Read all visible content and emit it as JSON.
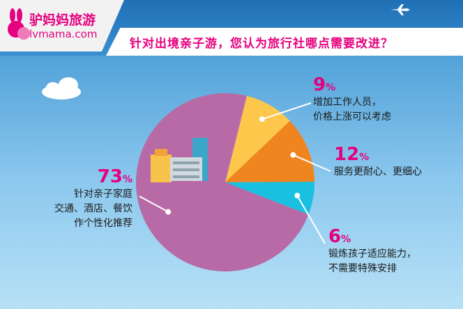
{
  "brand": {
    "name_cn": "驴妈妈旅游",
    "name_en": "lvmama.com"
  },
  "title": "针对出境亲子游，您认为旅行社哪点需要改进？",
  "colors": {
    "brand": "#e5007f"
  },
  "chart_data": {
    "type": "pie",
    "title": "针对出境亲子游，您认为旅行社哪点需要改进？",
    "slices": [
      {
        "label": "增加工作人员，\n价格上涨可以考虑",
        "value": 9,
        "color": "#fcc74a"
      },
      {
        "label": "服务更耐心、更细心",
        "value": 12,
        "color": "#f0841e"
      },
      {
        "label": "锻炼孩子适应能力，\n不需要特殊安排",
        "value": 6,
        "color": "#19c0e0"
      },
      {
        "label": "针对亲子家庭\n交通、酒店、餐饮\n作个性化推荐",
        "value": 73,
        "color": "#b86aa6"
      }
    ]
  }
}
